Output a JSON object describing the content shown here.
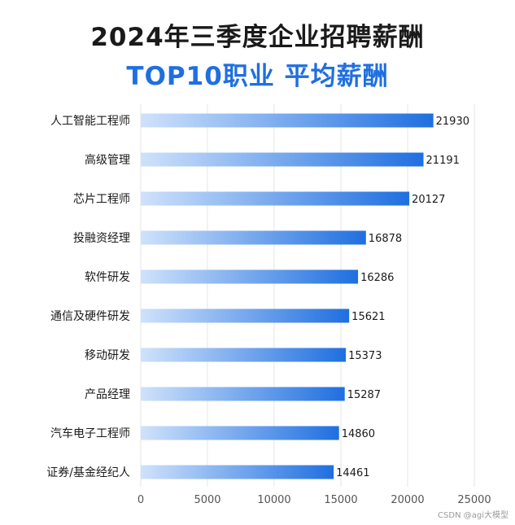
{
  "title": "2024年三季度企业招聘薪酬",
  "subtitle": "TOP10职业  平均薪酬",
  "watermark": "CSDN @agi大模型",
  "colors": {
    "bar_start": "#cfe2fb",
    "bar_end": "#1f6fe0",
    "subtitle": "#1f6fe0",
    "grid": "#e6e6e6"
  },
  "chart_data": {
    "type": "bar",
    "orientation": "horizontal",
    "categories": [
      "人工智能工程师",
      "高级管理",
      "芯片工程师",
      "投融资经理",
      "软件研发",
      "通信及硬件研发",
      "移动研发",
      "产品经理",
      "汽车电子工程师",
      "证券/基金经纪人"
    ],
    "values": [
      21930,
      21191,
      20127,
      16878,
      16286,
      15621,
      15373,
      15287,
      14860,
      14461
    ],
    "xlim": [
      0,
      25000
    ],
    "xticks": [
      "0",
      "5000",
      "10000",
      "15000",
      "20000",
      "25000"
    ],
    "grid": "vertical"
  }
}
